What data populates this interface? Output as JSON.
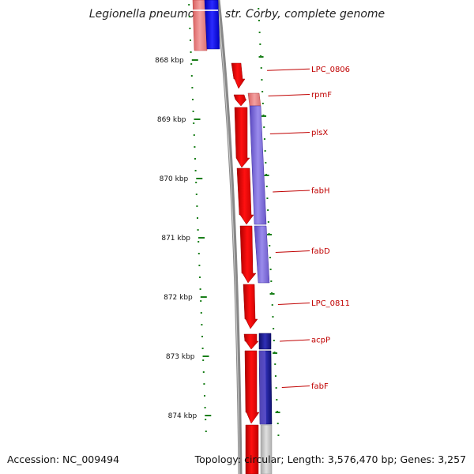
{
  "title": "Legionella pneumophila str. Corby, complete genome",
  "footer": {
    "accession": "Accession: NC_009494",
    "summary": "Topology: circular; Length: 3,576,470 bp; Genes: 3,257"
  },
  "colors": {
    "forward_cds": "#ff0000",
    "forward_light": "#f08080",
    "reverse_cds": "#7b68d8",
    "reverse_dark": "#1a1aa0",
    "blue_cds": "#0000ff",
    "backbone": "#888888",
    "tick": "#1a7f1a",
    "label": "#c00000"
  },
  "ticks": [
    {
      "label": "868 kbp",
      "kb": 868
    },
    {
      "label": "869 kbp",
      "kb": 869
    },
    {
      "label": "870 kbp",
      "kb": 870
    },
    {
      "label": "871 kbp",
      "kb": 871
    },
    {
      "label": "872 kbp",
      "kb": 872
    },
    {
      "label": "873 kbp",
      "kb": 873
    },
    {
      "label": "874 kbp",
      "kb": 874
    }
  ],
  "genes": [
    {
      "name": "LPC_0806",
      "strand": "+",
      "start_kb": 868.05,
      "end_kb": 868.45,
      "label_kb": 868.15
    },
    {
      "name": "rpmF",
      "strand": "+",
      "start_kb": 868.58,
      "end_kb": 868.78,
      "label_kb": 868.58
    },
    {
      "name": "plsX",
      "strand": "+",
      "start_kb": 868.78,
      "end_kb": 869.78,
      "label_kb": 869.22
    },
    {
      "name": "fabH",
      "strand": "+",
      "start_kb": 869.8,
      "end_kb": 870.78,
      "label_kb": 870.2
    },
    {
      "name": "fabD",
      "strand": "+",
      "start_kb": 870.8,
      "end_kb": 871.72,
      "label_kb": 871.22
    },
    {
      "name": "LPC_0811",
      "strand": "+",
      "start_kb": 871.74,
      "end_kb": 872.5,
      "label_kb": 872.1
    },
    {
      "name": "acpP",
      "strand": "+",
      "start_kb": 872.62,
      "end_kb": 872.88,
      "label_kb": 872.72
    },
    {
      "name": "fabF",
      "strand": "+",
      "start_kb": 872.9,
      "end_kb": 874.15,
      "label_kb": 873.5
    }
  ]
}
